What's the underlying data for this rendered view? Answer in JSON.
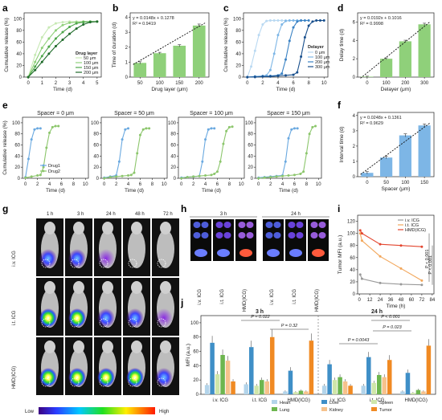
{
  "panel_labels": [
    "a",
    "b",
    "c",
    "d",
    "e",
    "f",
    "g",
    "h",
    "i",
    "j"
  ],
  "colors": {
    "green1": "#c7e9b4",
    "green2": "#8fd07a",
    "green3": "#4ea64a",
    "green4": "#1f6b2a",
    "blue1": "#b9d9f2",
    "blue2": "#7db6e6",
    "blue3": "#3a82c4",
    "blue4": "#174e8c",
    "drug1": "#6aa9e0",
    "drug2": "#8cc66c",
    "iv": "#999999",
    "it": "#f2a65a",
    "hmd": "#e3462f",
    "heart": "#b3d4ea",
    "liver": "#3f8fc7",
    "spleen": "#cfe6a9",
    "lung": "#6db64f",
    "kidney": "#f6c28c",
    "tumor": "#f08a23"
  },
  "chart_data": [
    {
      "panel": "a",
      "type": "line",
      "xlabel": "Time (d)",
      "ylabel": "Cumulative release (%)",
      "xlim": [
        -0.3,
        5.3
      ],
      "ylim": [
        0,
        110
      ],
      "xticks": [
        "0",
        "1",
        "2",
        "3",
        "4",
        "5"
      ],
      "yticks": [
        "0",
        "20",
        "40",
        "60",
        "80",
        "100"
      ],
      "legend_title": "Drug layer",
      "legend_position": "bottom-right",
      "x": [
        0,
        0.5,
        1,
        1.5,
        2,
        2.5,
        3,
        3.5,
        4,
        4.5,
        5
      ],
      "series": [
        {
          "name": "50 μm",
          "color_key": "green1",
          "values": [
            0,
            38,
            68,
            85,
            92,
            94,
            95,
            95,
            95,
            95,
            95
          ]
        },
        {
          "name": "100 μm",
          "color_key": "green2",
          "values": [
            0,
            26,
            50,
            66,
            80,
            89,
            93,
            94,
            95,
            95,
            95
          ]
        },
        {
          "name": "150 μm",
          "color_key": "green3",
          "values": [
            0,
            18,
            36,
            52,
            66,
            77,
            86,
            92,
            94,
            95,
            95
          ]
        },
        {
          "name": "200 μm",
          "color_key": "green4",
          "values": [
            0,
            12,
            26,
            40,
            53,
            64,
            74,
            83,
            90,
            94,
            95
          ]
        }
      ]
    },
    {
      "panel": "b",
      "type": "bar",
      "xlabel": "Drug layer (μm)",
      "ylabel": "Time of duration (d)",
      "categories": [
        "50",
        "100",
        "150",
        "200"
      ],
      "values": [
        0.95,
        1.6,
        2.1,
        3.45
      ],
      "errors": [
        0.08,
        0.06,
        0.07,
        0.1
      ],
      "ylim": [
        0,
        4.3
      ],
      "yticks": [
        "0",
        "1",
        "2",
        "3",
        "4"
      ],
      "fit": {
        "equation": "y = 0.0148x + 0.1278",
        "r2": "R² = 0.9419"
      }
    },
    {
      "panel": "c",
      "type": "line",
      "xlabel": "Time (d)",
      "ylabel": "Cumulative release (%)",
      "xlim": [
        -0.5,
        10.5
      ],
      "ylim": [
        0,
        110
      ],
      "xticks": [
        "0",
        "2",
        "4",
        "6",
        "8",
        "10"
      ],
      "yticks": [
        "0",
        "20",
        "40",
        "60",
        "80",
        "100"
      ],
      "legend_title": "Delayer",
      "legend_position": "right",
      "series": [
        {
          "name": "0 μm",
          "color_key": "blue1",
          "x": [
            0,
            0.5,
            1,
            1.5,
            2,
            2.5,
            3,
            3.5,
            4,
            4.5,
            5
          ],
          "values": [
            0,
            18,
            45,
            72,
            90,
            96,
            97,
            97,
            97,
            97,
            97
          ]
        },
        {
          "name": "100 μm",
          "color_key": "blue2",
          "x": [
            0,
            1,
            2,
            2.5,
            3,
            3.5,
            4,
            4.5,
            5,
            5.5,
            6,
            6.5,
            7
          ],
          "values": [
            0,
            1,
            2,
            3,
            12,
            40,
            72,
            90,
            96,
            97,
            97,
            97,
            97
          ]
        },
        {
          "name": "200 μm",
          "color_key": "blue3",
          "x": [
            0,
            1,
            2,
            3,
            4,
            4.5,
            5,
            5.5,
            6,
            6.5,
            7,
            7.5,
            8
          ],
          "values": [
            0,
            1,
            1,
            2,
            3,
            6,
            30,
            62,
            85,
            95,
            97,
            97,
            97
          ]
        },
        {
          "name": "300 μm",
          "color_key": "blue4",
          "x": [
            0,
            1,
            2,
            3,
            4,
            5,
            6,
            6.5,
            7,
            7.5,
            8,
            8.5,
            9,
            9.5,
            10
          ],
          "values": [
            0,
            0,
            1,
            1,
            2,
            3,
            4,
            8,
            35,
            68,
            88,
            95,
            97,
            97,
            97
          ]
        }
      ]
    },
    {
      "panel": "d",
      "type": "bar",
      "xlabel": "Delayer (μm)",
      "ylabel": "Delay time (d)",
      "categories": [
        "0",
        "100",
        "200",
        "300"
      ],
      "values": [
        0.05,
        2.0,
        3.9,
        5.75
      ],
      "errors": [
        0.05,
        0.1,
        0.12,
        0.12
      ],
      "ylim": [
        0,
        7
      ],
      "yticks": [
        "0",
        "2",
        "4",
        "6"
      ],
      "fit": {
        "equation": "y = 0.0192x + 0.1016",
        "r2": "R² = 0.9998"
      }
    },
    {
      "panel": "e",
      "type": "line",
      "xlabel": "Time (d)",
      "ylabel": "Cumulative release (%)",
      "xlim": [
        -0.5,
        10.5
      ],
      "ylim": [
        0,
        110
      ],
      "xticks": [
        "0",
        "2",
        "4",
        "6",
        "8",
        "10"
      ],
      "yticks": [
        "0",
        "20",
        "40",
        "60",
        "80",
        "100"
      ],
      "legend_position": "bottom-left",
      "subplots": [
        {
          "title": "Spacer = 0 μm",
          "series": [
            {
              "name": "Drug1",
              "color_key": "drug1",
              "x": [
                0,
                0.5,
                1,
                1.5,
                2,
                2.5
              ],
              "values": [
                2,
                35,
                70,
                88,
                90,
                90
              ]
            },
            {
              "name": "Drug2",
              "color_key": "drug2",
              "x": [
                0,
                1,
                2,
                2.5,
                3,
                3.5,
                4,
                4.5,
                5,
                5.5
              ],
              "values": [
                1,
                3,
                5,
                6,
                20,
                55,
                82,
                92,
                94,
                94
              ]
            }
          ]
        },
        {
          "title": "Spacer = 50 μm",
          "series": [
            {
              "name": "Drug1",
              "color_key": "drug1",
              "x": [
                0,
                1,
                2,
                2.5,
                3,
                3.5,
                4
              ],
              "values": [
                1,
                3,
                5,
                30,
                70,
                88,
                90
              ]
            },
            {
              "name": "Drug2",
              "color_key": "drug2",
              "x": [
                0,
                1,
                2,
                3,
                4,
                4.5,
                5,
                5.5,
                6,
                6.5,
                7,
                7.5
              ],
              "values": [
                0,
                2,
                3,
                4,
                5,
                6,
                10,
                45,
                78,
                88,
                90,
                90
              ]
            }
          ]
        },
        {
          "title": "Spacer = 100 μm",
          "series": [
            {
              "name": "Drug1",
              "color_key": "drug1",
              "x": [
                0,
                1,
                2,
                3,
                3.5,
                4,
                4.5,
                5,
                5.5
              ],
              "values": [
                1,
                2,
                3,
                4,
                30,
                70,
                88,
                90,
                90
              ]
            },
            {
              "name": "Drug2",
              "color_key": "drug2",
              "x": [
                0,
                1,
                2,
                3,
                4,
                5,
                5.5,
                6,
                6.5,
                7,
                7.5,
                8,
                8.5
              ],
              "values": [
                0,
                2,
                3,
                4,
                5,
                6,
                8,
                12,
                30,
                62,
                85,
                92,
                93
              ]
            }
          ]
        },
        {
          "title": "Spacer = 150 μm",
          "series": [
            {
              "name": "Drug1",
              "color_key": "drug1",
              "x": [
                0,
                1,
                2,
                3,
                4,
                4.5,
                5,
                5.5,
                6,
                6.5
              ],
              "values": [
                1,
                2,
                3,
                4,
                5,
                30,
                72,
                88,
                90,
                90
              ]
            },
            {
              "name": "Drug2",
              "color_key": "drug2",
              "x": [
                0,
                1,
                2,
                3,
                4,
                5,
                6,
                7,
                7.5,
                8,
                8.5,
                9,
                9.5
              ],
              "values": [
                0,
                1,
                2,
                3,
                4,
                5,
                6,
                8,
                12,
                45,
                80,
                92,
                94
              ]
            }
          ]
        }
      ]
    },
    {
      "panel": "f",
      "type": "bar",
      "xlabel": "Spacer (μm)",
      "ylabel": "Interval time (d)",
      "categories": [
        "0",
        "50",
        "100",
        "150"
      ],
      "values": [
        0.25,
        1.25,
        2.7,
        3.35
      ],
      "errors": [
        0.08,
        0.08,
        0.1,
        0.1
      ],
      "ylim": [
        0,
        4.2
      ],
      "yticks": [
        "0",
        "1",
        "2",
        "3",
        "4"
      ],
      "fit": {
        "equation": "y = 0.0248x + 0.1361",
        "r2": "R² = 0.9629"
      }
    },
    {
      "panel": "i",
      "type": "line",
      "xlabel": "Time (h)",
      "ylabel": "Tumor MFI (a.u.)",
      "xlim": [
        -2,
        86
      ],
      "ylim": [
        0,
        130
      ],
      "xticks": [
        "0",
        "12",
        "24",
        "36",
        "48",
        "60",
        "72",
        "84"
      ],
      "yticks": [
        "0",
        "20",
        "40",
        "60",
        "80",
        "100",
        "120"
      ],
      "legend_position": "top-right",
      "x": [
        1,
        3,
        24,
        48,
        72
      ],
      "series": [
        {
          "name": "i.v. ICG",
          "color_key": "iv",
          "values": [
            32,
            25,
            18,
            16,
            15
          ]
        },
        {
          "name": "i.t. ICG",
          "color_key": "it",
          "values": [
            100,
            88,
            62,
            42,
            22
          ]
        },
        {
          "name": "HMD(ICG)",
          "color_key": "hmd",
          "values": [
            105,
            100,
            82,
            80,
            78
          ]
        }
      ],
      "annotations": [
        "P < 0.001",
        "P < 0.001"
      ]
    },
    {
      "panel": "j",
      "type": "bar",
      "ylabel": "MFI (a.u.)",
      "ylim": [
        0,
        110
      ],
      "yticks": [
        "0",
        "20",
        "40",
        "60",
        "80",
        "100"
      ],
      "group_titles": [
        "3 h",
        "24 h"
      ],
      "categories": [
        "i.v. ICG",
        "i.t. ICG",
        "HMD(ICG)"
      ],
      "series_names": [
        "Heart",
        "Liver",
        "Spleen",
        "Lung",
        "Kidney",
        "Tumor"
      ],
      "series_color_keys": [
        "heart",
        "liver",
        "spleen",
        "lung",
        "kidney",
        "tumor"
      ],
      "groups": [
        {
          "title": "3 h",
          "values": [
            [
              13,
              72,
              28,
              55,
              47,
              18
            ],
            [
              14,
              66,
              12,
              20,
              18,
              80
            ],
            [
              4,
              33,
              3,
              5,
              4,
              75
            ]
          ]
        },
        {
          "title": "24 h",
          "values": [
            [
              12,
              42,
              20,
              24,
              18,
              12
            ],
            [
              12,
              52,
              16,
              27,
              24,
              48
            ],
            [
              4,
              30,
              2,
              6,
              4,
              68
            ]
          ]
        }
      ],
      "annotations": [
        "P = 0.022",
        "P = 0.32",
        "P < 0.001",
        "P = 0.023",
        "P = 0.0043"
      ]
    }
  ],
  "imaging_g": {
    "column_labels": [
      "1 h",
      "3 h",
      "24 h",
      "48 h",
      "72 h"
    ],
    "row_labels": [
      "i.v. ICG",
      "i.t. ICG",
      "HMD(ICG)"
    ],
    "colorbar_low": "Low",
    "colorbar_high": "High"
  },
  "imaging_h": {
    "time_labels": [
      "3 h",
      "24 h"
    ],
    "group_labels": [
      "i.v. ICG",
      "i.t. ICG",
      "HMD(ICG)",
      "i.v. ICG",
      "i.t. ICG",
      "HMD(ICG)"
    ]
  }
}
